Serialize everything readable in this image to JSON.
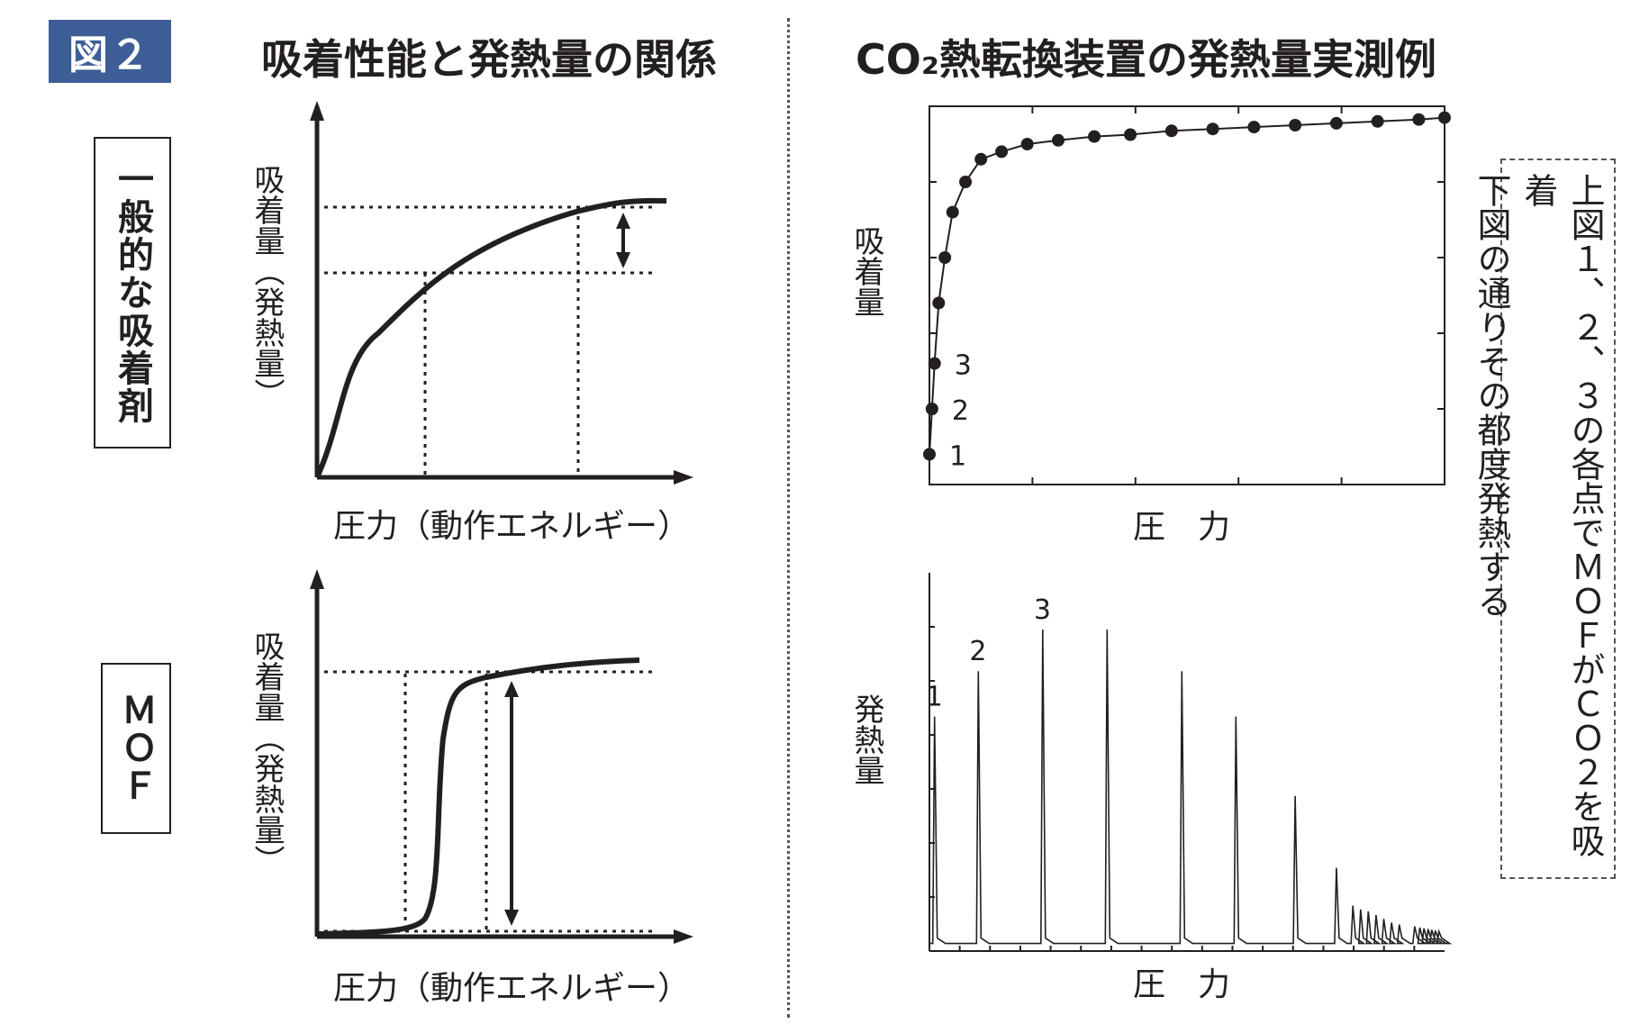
{
  "figure": {
    "badge": "図２",
    "left_title": "吸着性能と発熱量の関係",
    "right_title": "CO₂熱転換装置の発熱量実測例"
  },
  "left_panel": {
    "row1_label": "一般的な吸着剤",
    "row2_label": "ＭＯＦ",
    "y_label": "吸着量（発熱量）",
    "x_label": "圧力（動作エネルギー）"
  },
  "right_panel": {
    "top_y_label": "吸着量",
    "top_x_label": "圧　力",
    "bottom_y_label": "発熱量",
    "bottom_x_label": "圧　力",
    "point_labels": [
      "1",
      "2",
      "3"
    ],
    "note": "上図１、２、３の各点でＭＯＦがＣＯ２を吸着\n下図の通りその都度発熱する"
  },
  "colors": {
    "badge_bg": "#3d5e96",
    "ink": "#231f20"
  },
  "chart_data": [
    {
      "type": "line",
      "ylabel": "吸着量",
      "xlabel": "圧　力",
      "x": [
        0,
        0.005,
        0.01,
        0.018,
        0.03,
        0.045,
        0.07,
        0.1,
        0.14,
        0.19,
        0.25,
        0.32,
        0.39,
        0.47,
        0.55,
        0.63,
        0.71,
        0.79,
        0.87,
        0.95,
        1.0
      ],
      "series": [
        {
          "values": [
            0.08,
            0.2,
            0.32,
            0.48,
            0.6,
            0.72,
            0.8,
            0.86,
            0.88,
            0.9,
            0.91,
            0.92,
            0.925,
            0.935,
            0.94,
            0.945,
            0.95,
            0.955,
            0.96,
            0.965,
            0.97
          ]
        }
      ],
      "annotated_points": [
        "1",
        "2",
        "3"
      ],
      "xlim": [
        0,
        1
      ],
      "ylim": [
        0,
        1
      ],
      "grid": false
    },
    {
      "type": "line",
      "ylabel": "発熱量",
      "xlabel": "圧　力",
      "peaks": {
        "x": [
          0.01,
          0.095,
          0.22,
          0.345,
          0.49,
          0.595,
          0.71,
          0.79,
          0.822,
          0.837,
          0.852,
          0.867,
          0.882,
          0.897,
          0.912,
          0.942,
          0.952,
          0.96,
          0.968,
          0.975,
          0.982,
          0.989
        ],
        "height": [
          0.6,
          0.72,
          0.83,
          0.83,
          0.72,
          0.6,
          0.39,
          0.2,
          0.1,
          0.09,
          0.085,
          0.075,
          0.065,
          0.055,
          0.05,
          0.045,
          0.042,
          0.04,
          0.038,
          0.036,
          0.034,
          0.032
        ]
      },
      "peak_labels": [
        "1",
        "2",
        "3"
      ],
      "baseline": 0.02,
      "xlim": [
        0,
        1
      ],
      "ylim": [
        0,
        1
      ],
      "grid": false
    }
  ]
}
